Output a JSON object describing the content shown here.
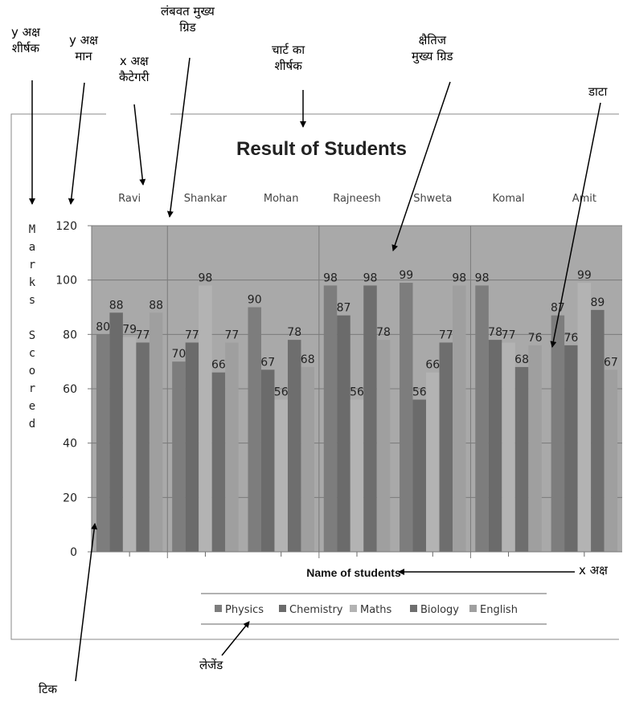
{
  "annotations": {
    "y_axis_title": {
      "line1": "y अक्ष",
      "line2": "शीर्षक"
    },
    "y_axis_values": {
      "line1": "y अक्ष",
      "line2": "मान"
    },
    "x_axis_category": {
      "line1": "x अक्ष",
      "line2": "कैटेगरी"
    },
    "vertical_major_grid": {
      "line1": "लंबवत मुख्य",
      "line2": "ग्रिड"
    },
    "chart_title": {
      "line1": "चार्ट का",
      "line2": "शीर्षक"
    },
    "horizontal_major_grid": {
      "line1": "क्षैतिज",
      "line2": "मुख्य ग्रिड"
    },
    "data": "डाटा",
    "x_axis": "x अक्ष",
    "legend": "लेजेंड",
    "tick": "टिक"
  },
  "colors": {
    "plot_background": "#a9a9a9",
    "grid": "#7a7a7a",
    "physics": "#7d7d7d",
    "chemistry": "#6b6b6b",
    "maths": "#b3b3b3",
    "biology": "#6e6e6e",
    "english": "#9f9f9f"
  },
  "chart_data": {
    "type": "bar",
    "title": "Result of Students",
    "xlabel": "Name of students",
    "ylabel": "Marks Scored",
    "ylim": [
      0,
      120
    ],
    "yticks": [
      0,
      20,
      40,
      60,
      80,
      100,
      120
    ],
    "grid": true,
    "legend_position": "bottom",
    "categories": [
      "Ravi",
      "Shankar",
      "Mohan",
      "Rajneesh",
      "Shweta",
      "Komal",
      "Amit"
    ],
    "series": [
      {
        "name": "Physics",
        "color_key": "physics",
        "values": [
          80,
          70,
          90,
          98,
          99,
          98,
          87
        ]
      },
      {
        "name": "Chemistry",
        "color_key": "chemistry",
        "values": [
          88,
          77,
          67,
          87,
          56,
          78,
          76
        ]
      },
      {
        "name": "Maths",
        "color_key": "maths",
        "values": [
          79,
          98,
          56,
          56,
          66,
          77,
          99
        ]
      },
      {
        "name": "Biology",
        "color_key": "biology",
        "values": [
          77,
          66,
          78,
          98,
          77,
          68,
          89
        ]
      },
      {
        "name": "English",
        "color_key": "english",
        "values": [
          88,
          77,
          68,
          78,
          98,
          76,
          67
        ]
      }
    ]
  }
}
